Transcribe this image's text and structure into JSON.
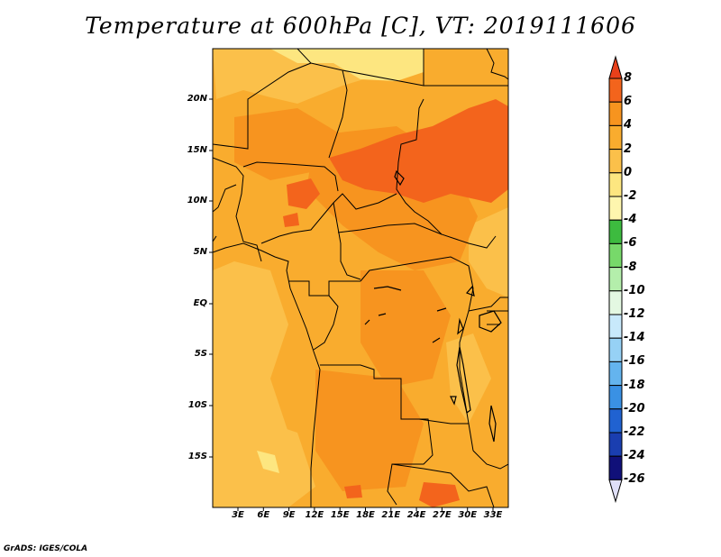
{
  "title": "Temperature at 600hPa [C], VT: 2019111606",
  "credit": "GrADS: IGES/COLA",
  "lat_labels": [
    "20N",
    "15N",
    "10N",
    "5N",
    "EQ",
    "5S",
    "10S",
    "15S"
  ],
  "lon_labels": [
    "3E",
    "6E",
    "9E",
    "12E",
    "15E",
    "18E",
    "21E",
    "24E",
    "27E",
    "30E",
    "33E"
  ],
  "colorbar": {
    "labels": [
      "8",
      "6",
      "4",
      "2",
      "0",
      "-2",
      "-4",
      "-6",
      "-8",
      "-10",
      "-12",
      "-14",
      "-16",
      "-18",
      "-20",
      "-22",
      "-24",
      "-26"
    ],
    "colors": [
      "#e8401a",
      "#f3641c",
      "#f7941f",
      "#f9ac2e",
      "#fbc04a",
      "#fde680",
      "#fef6ae",
      "#3dbb3f",
      "#77d96a",
      "#b4eeab",
      "#e4f8e2",
      "#c8e9fb",
      "#96d1f5",
      "#64b4ee",
      "#3a91e4",
      "#2062d1",
      "#1a3eb0",
      "#101079",
      "#e0e0f8"
    ]
  },
  "map_colors": {
    "base": "#f9ac2e",
    "warm": "#f7941f",
    "hot": "#f3641c",
    "cool": "#fbc04a",
    "cooler": "#fde680"
  }
}
